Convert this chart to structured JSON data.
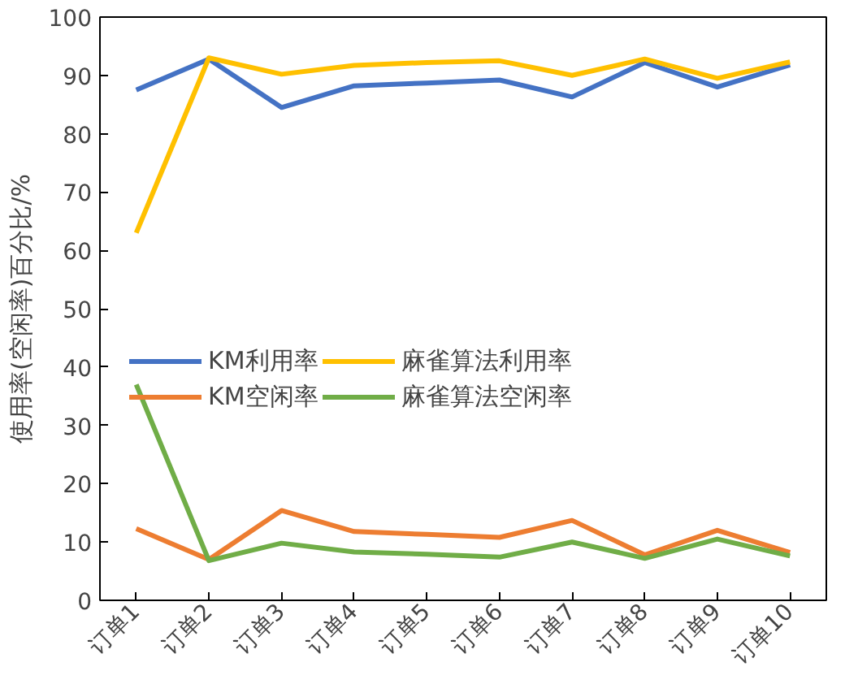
{
  "chart_data": {
    "type": "line",
    "ylabel": "使用率(空闲率)百分比/%",
    "categories": [
      "订单1",
      "订单2",
      "订单3",
      "订单4",
      "订单5",
      "订单6",
      "订单7",
      "订单8",
      "订单9",
      "订单10"
    ],
    "series": [
      {
        "name": "KM利用率",
        "color": "#4472c4",
        "values": [
          87.5,
          92.8,
          84.5,
          88.2,
          88.7,
          89.2,
          86.3,
          92.2,
          88.0,
          91.8
        ]
      },
      {
        "name": "KM空闲率",
        "color": "#ed7d31",
        "values": [
          12.3,
          7.0,
          15.4,
          11.8,
          11.3,
          10.8,
          13.7,
          7.8,
          12.0,
          8.2
        ]
      },
      {
        "name": "麻雀算法利用率",
        "color": "#ffc000",
        "values": [
          63.0,
          93.0,
          90.2,
          91.7,
          92.2,
          92.5,
          90.0,
          92.8,
          89.5,
          92.3
        ]
      },
      {
        "name": "麻雀算法空闲率",
        "color": "#70ad47",
        "values": [
          37.0,
          6.8,
          9.8,
          8.3,
          7.9,
          7.4,
          10.0,
          7.2,
          10.5,
          7.6
        ]
      }
    ],
    "ylim": [
      0,
      100
    ],
    "yticks": [
      0,
      10,
      20,
      30,
      40,
      50,
      60,
      70,
      80,
      90,
      100
    ],
    "grid": false,
    "legend": "center",
    "marker": "none",
    "line_style": "solid"
  }
}
